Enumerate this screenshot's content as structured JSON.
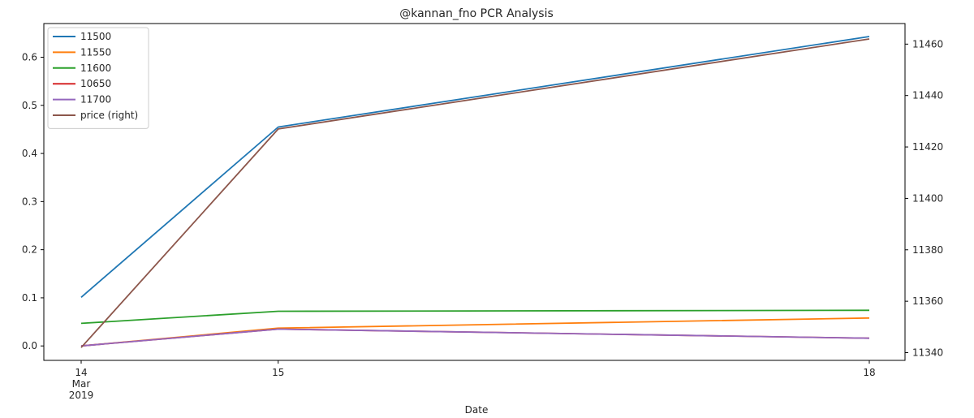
{
  "chart_data": {
    "type": "line",
    "title": "@kannan_fno PCR Analysis",
    "xlabel": "Date",
    "x": [
      "2019-03-14",
      "2019-03-15",
      "2019-03-18"
    ],
    "x_tick_labels": [
      {
        "day": "14",
        "month": "Mar",
        "year": "2019"
      },
      {
        "day": "15",
        "month": "",
        "year": ""
      },
      {
        "day": "18",
        "month": "",
        "year": ""
      }
    ],
    "ylim_left": [
      -0.03,
      0.67
    ],
    "ylim_right": [
      11337,
      11468
    ],
    "y_ticks_left": [
      "0.0",
      "0.1",
      "0.2",
      "0.3",
      "0.4",
      "0.5",
      "0.6"
    ],
    "y_ticks_right": [
      "11340",
      "11360",
      "11380",
      "11400",
      "11420",
      "11440",
      "11460"
    ],
    "legend_position": "top-left",
    "grid": false,
    "series": [
      {
        "name": "11500",
        "color": "#1f77b4",
        "axis": "left",
        "values": [
          0.101,
          0.455,
          0.643
        ]
      },
      {
        "name": "11550",
        "color": "#ff7f0e",
        "axis": "left",
        "values": [
          0.0,
          0.037,
          0.058
        ]
      },
      {
        "name": "11600",
        "color": "#2ca02c",
        "axis": "left",
        "values": [
          0.047,
          0.072,
          0.074
        ]
      },
      {
        "name": "10650",
        "color": "#d62728",
        "axis": "left",
        "values": [
          0.0,
          0.035,
          0.016
        ]
      },
      {
        "name": "11700",
        "color": "#9467bd",
        "axis": "left",
        "values": [
          0.0,
          0.035,
          0.016
        ]
      },
      {
        "name": "price (right)",
        "color": "#8c564b",
        "axis": "right",
        "values": [
          11342,
          11427,
          11462
        ]
      }
    ]
  }
}
